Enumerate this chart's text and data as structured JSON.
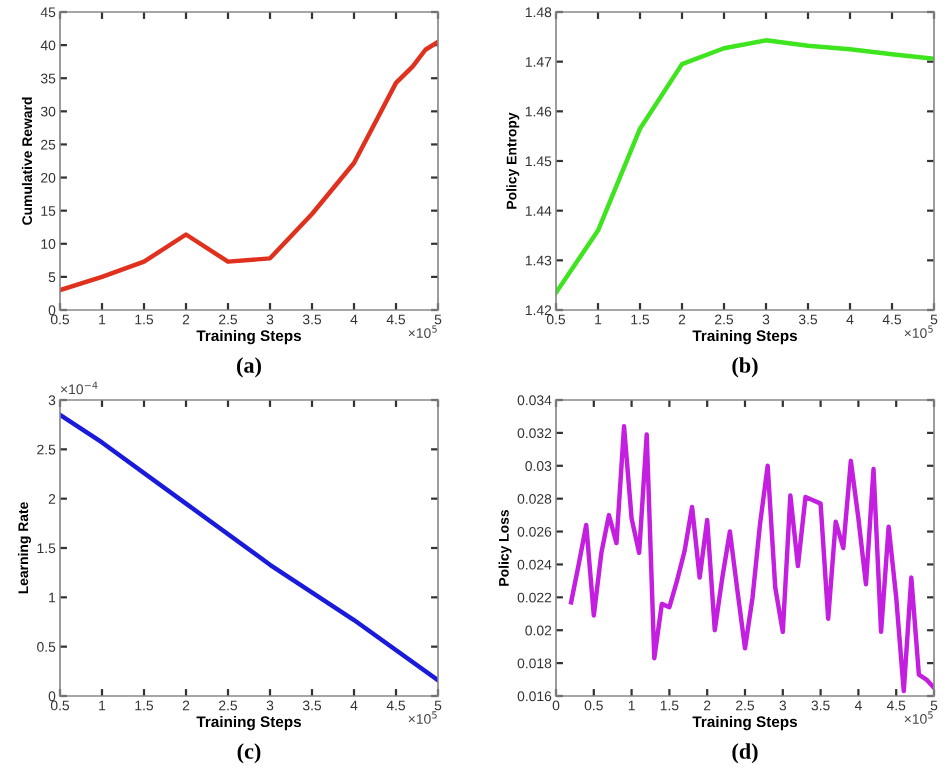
{
  "chart_data": [
    {
      "type": "line",
      "xlabel": "Training Steps",
      "ylabel": "Cumulative Reward",
      "annotations": [
        "(a)",
        "×10$^{5}$"
      ],
      "grid": false,
      "x": [
        0.5,
        1,
        1.5,
        2,
        2.5,
        3,
        3.5,
        4,
        4.5,
        4.7,
        4.85,
        5
      ],
      "series": [
        {
          "color": "#e0301e",
          "values": [
            3,
            5,
            7.3,
            11.4,
            7.3,
            7.8,
            14.5,
            22.2,
            34.3,
            36.8,
            39.3,
            40.5
          ]
        }
      ],
      "xlim": [
        0.5,
        5
      ],
      "xticks": [
        0.5,
        1,
        1.5,
        2,
        2.5,
        3,
        3.5,
        4,
        4.5,
        5
      ],
      "ylim": [
        0,
        45
      ],
      "yticks": [
        0,
        5,
        10,
        15,
        20,
        25,
        30,
        35,
        40,
        45
      ]
    },
    {
      "type": "line",
      "xlabel": "Training Steps",
      "ylabel": "Policy Entropy",
      "annotations": [
        "(b)",
        "×10$^{5}$"
      ],
      "grid": false,
      "x": [
        0.5,
        1,
        1.5,
        2,
        2.5,
        3,
        3.5,
        4,
        4.5,
        5
      ],
      "series": [
        {
          "color": "#3ee41e",
          "values": [
            1.4235,
            1.436,
            1.4565,
            1.4695,
            1.4727,
            1.4743,
            1.4732,
            1.4725,
            1.4715,
            1.4706
          ]
        }
      ],
      "xlim": [
        0.5,
        5
      ],
      "xticks": [
        0.5,
        1,
        1.5,
        2,
        2.5,
        3,
        3.5,
        4,
        4.5,
        5
      ],
      "ylim": [
        1.42,
        1.48
      ],
      "yticks": [
        1.42,
        1.43,
        1.44,
        1.45,
        1.46,
        1.47,
        1.48
      ]
    },
    {
      "type": "line",
      "xlabel": "Training Steps",
      "ylabel": "Learning Rate",
      "annotations": [
        "(c)",
        "×10$^{5}$",
        "×10$^{−4}$"
      ],
      "grid": false,
      "x": [
        0.5,
        1,
        2,
        3,
        4,
        5
      ],
      "series": [
        {
          "color": "#1a1adb",
          "values": [
            2.85,
            2.57,
            1.95,
            1.33,
            0.77,
            0.16
          ]
        }
      ],
      "xlim": [
        0.5,
        5
      ],
      "xticks": [
        0.5,
        1,
        1.5,
        2,
        2.5,
        3,
        3.5,
        4,
        4.5,
        5
      ],
      "ylim": [
        0,
        3
      ],
      "yticks": [
        0,
        0.5,
        1,
        1.5,
        2,
        2.5,
        3
      ]
    },
    {
      "type": "line",
      "xlabel": "Training Steps",
      "ylabel": "Policy Loss",
      "annotations": [
        "(d)",
        "×10$^{5}$"
      ],
      "grid": false,
      "x": [
        0.2,
        0.3,
        0.4,
        0.5,
        0.6,
        0.7,
        0.8,
        0.9,
        1.0,
        1.1,
        1.2,
        1.3,
        1.4,
        1.5,
        1.6,
        1.7,
        1.8,
        1.9,
        2.0,
        2.1,
        2.2,
        2.3,
        2.4,
        2.5,
        2.6,
        2.7,
        2.8,
        2.9,
        3.0,
        3.1,
        3.2,
        3.3,
        3.4,
        3.5,
        3.6,
        3.7,
        3.8,
        3.9,
        4.0,
        4.1,
        4.2,
        4.3,
        4.4,
        4.5,
        4.6,
        4.7,
        4.8,
        4.9,
        5.0
      ],
      "series": [
        {
          "color": "#c41ee0",
          "values": [
            0.0217,
            0.024,
            0.0264,
            0.0209,
            0.0247,
            0.027,
            0.0253,
            0.0324,
            0.0268,
            0.0247,
            0.0319,
            0.0183,
            0.0216,
            0.0214,
            0.023,
            0.0248,
            0.0275,
            0.0232,
            0.0267,
            0.02,
            0.0232,
            0.026,
            0.0224,
            0.0189,
            0.022,
            0.0265,
            0.03,
            0.0226,
            0.0199,
            0.0282,
            0.0239,
            0.0281,
            0.0279,
            0.0277,
            0.0207,
            0.0266,
            0.025,
            0.0303,
            0.0268,
            0.0228,
            0.0298,
            0.0199,
            0.0263,
            0.022,
            0.0163,
            0.0232,
            0.0173,
            0.017,
            0.0165
          ]
        }
      ],
      "xlim": [
        0,
        5
      ],
      "xticks": [
        0,
        0.5,
        1,
        1.5,
        2,
        2.5,
        3,
        3.5,
        4,
        4.5,
        5
      ],
      "ylim": [
        0.016,
        0.034
      ],
      "yticks": [
        0.016,
        0.018,
        0.02,
        0.022,
        0.024,
        0.026,
        0.028,
        0.03,
        0.032,
        0.034
      ]
    }
  ]
}
